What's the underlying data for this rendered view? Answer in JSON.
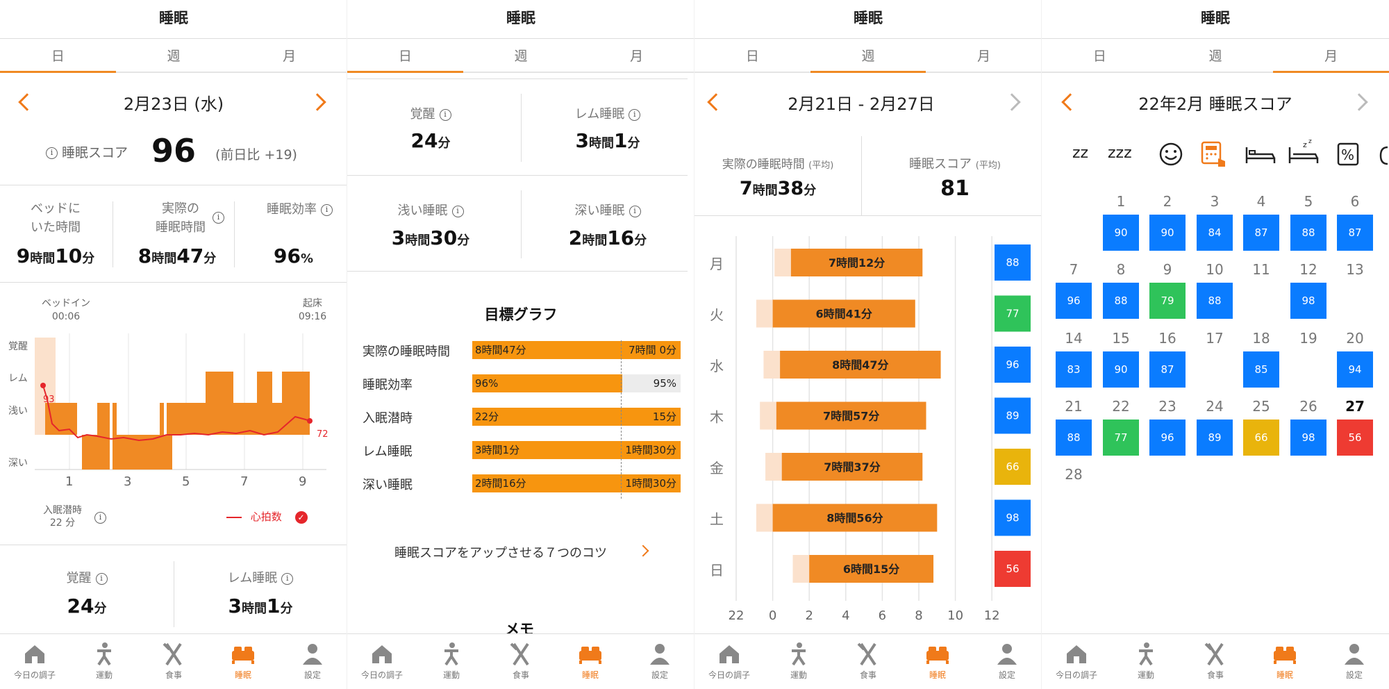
{
  "colors": {
    "accent": "#f07a1a",
    "bar": "#f08a24",
    "light": "#fbe1cc",
    "blue": "#0a7cff",
    "green": "#2fc35a",
    "yellow": "#e9b40c",
    "red": "#ee3b32"
  },
  "common": {
    "title": "睡眠",
    "tabs": [
      "日",
      "週",
      "月"
    ]
  },
  "nav": [
    {
      "label": "今日の調子",
      "icon": "home-icon"
    },
    {
      "label": "運動",
      "icon": "exercise-icon"
    },
    {
      "label": "食事",
      "icon": "fork-knife-icon"
    },
    {
      "label": "睡眠",
      "icon": "bed-icon"
    },
    {
      "label": "設定",
      "icon": "person-icon"
    }
  ],
  "p1": {
    "date": "2月23日 (水)",
    "score_label": "睡眠スコア",
    "score_value": "96",
    "score_diff": "(前日比 +19)",
    "stats": [
      {
        "label1": "ベッドに",
        "label2": "いた時間",
        "h": "9",
        "hu": "時間",
        "m": "10",
        "mu": "分"
      },
      {
        "label1": "実際の",
        "label2": "睡眠時間",
        "h": "8",
        "hu": "時間",
        "m": "47",
        "mu": "分"
      },
      {
        "label1": "睡眠効率",
        "label2": "",
        "h": "96",
        "hu": "%",
        "m": "",
        "mu": ""
      }
    ],
    "bedin_label": "ベッドイン",
    "bedin_time": "00:06",
    "wake_label": "起床",
    "wake_time": "09:16",
    "stage_labels": [
      "覚醒",
      "レム",
      "浅い",
      "深い"
    ],
    "x_ticks": [
      "1",
      "3",
      "5",
      "7",
      "9"
    ],
    "hr_start": "93",
    "hr_end": "72",
    "latency_label": "入眠潜時",
    "latency_value": "22 分",
    "legend_label": "心拍数",
    "awake_label": "覚醒",
    "awake_value": "24",
    "awake_unit": "分",
    "rem_label": "レム睡眠",
    "rem_h": "3",
    "rem_hu": "時間",
    "rem_m": "1",
    "rem_mu": "分"
  },
  "p2": {
    "cells": [
      {
        "label": "覚醒",
        "h": "24",
        "hu": "分",
        "m": "",
        "mu": ""
      },
      {
        "label": "レム睡眠",
        "h": "3",
        "hu": "時間",
        "m": "1",
        "mu": "分"
      },
      {
        "label": "浅い睡眠",
        "h": "3",
        "hu": "時間",
        "m": "30",
        "mu": "分"
      },
      {
        "label": "深い睡眠",
        "h": "2",
        "hu": "時間",
        "m": "16",
        "mu": "分"
      }
    ],
    "goal_title": "目標グラフ",
    "goals": [
      {
        "label": "実際の睡眠時間",
        "actual": "8時間47分",
        "target": "7時間 0分",
        "fraction": 1.0
      },
      {
        "label": "睡眠効率",
        "actual": "96%",
        "target": "95%",
        "fraction": 0.72
      },
      {
        "label": "入眠潜時",
        "actual": "22分",
        "target": "15分",
        "fraction": 1.0
      },
      {
        "label": "レム睡眠",
        "actual": "3時間1分",
        "target": "1時間30分",
        "fraction": 1.0
      },
      {
        "label": "深い睡眠",
        "actual": "2時間16分",
        "target": "1時間30分",
        "fraction": 1.0
      }
    ],
    "tips": "睡眠スコアをアップさせる７つのコツ",
    "memo": "メモ"
  },
  "p3": {
    "range": "2月21日 - 2月27日",
    "avg_sleep_label": "実際の睡眠時間",
    "avg_suffix": "(平均)",
    "avg_sleep_h": "7",
    "avg_sleep_m": "38",
    "avg_score_label": "睡眠スコア",
    "avg_score": "81",
    "x_ticks": [
      "22",
      "0",
      "2",
      "4",
      "6",
      "8",
      "10",
      "12"
    ]
  },
  "chart_data": {
    "type": "bar",
    "title": "",
    "categories": [
      "月",
      "火",
      "水",
      "木",
      "金",
      "土",
      "日"
    ],
    "x_unit_hours_from_midnight": true,
    "series": [
      {
        "values_start": [
          1.0,
          -0.0,
          0.4,
          0.2,
          0.5,
          0.0,
          2.0
        ],
        "values_end": [
          8.2,
          7.8,
          9.2,
          8.4,
          8.2,
          9.0,
          8.8
        ],
        "labels": [
          "7時間12分",
          "6時間41分",
          "8時間47分",
          "7時間57分",
          "7時間37分",
          "8時間56分",
          "6時間15分"
        ],
        "scores": [
          88,
          77,
          96,
          89,
          66,
          98,
          56
        ]
      }
    ],
    "xlim": [
      -2,
      12
    ]
  },
  "p4": {
    "title": "22年2月 睡眠スコア",
    "filter_icons": [
      "zz",
      "zzz",
      "smile-icon",
      "calculator-icon",
      "bed-icon",
      "bed-zzz-icon",
      "percent-icon"
    ],
    "days": [
      {
        "d": "1",
        "s": "90",
        "c": "blue"
      },
      {
        "d": "2",
        "s": "90",
        "c": "blue"
      },
      {
        "d": "3",
        "s": "84",
        "c": "blue"
      },
      {
        "d": "4",
        "s": "87",
        "c": "blue"
      },
      {
        "d": "5",
        "s": "88",
        "c": "blue"
      },
      {
        "d": "6",
        "s": "87",
        "c": "blue"
      },
      {
        "d": "7",
        "s": "96",
        "c": "blue"
      },
      {
        "d": "8",
        "s": "88",
        "c": "blue"
      },
      {
        "d": "9",
        "s": "79",
        "c": "green"
      },
      {
        "d": "10",
        "s": "88",
        "c": "blue"
      },
      {
        "d": "11",
        "s": "",
        "c": ""
      },
      {
        "d": "12",
        "s": "98",
        "c": "blue"
      },
      {
        "d": "13",
        "s": "",
        "c": ""
      },
      {
        "d": "14",
        "s": "83",
        "c": "blue"
      },
      {
        "d": "15",
        "s": "90",
        "c": "blue"
      },
      {
        "d": "16",
        "s": "87",
        "c": "blue"
      },
      {
        "d": "17",
        "s": "",
        "c": ""
      },
      {
        "d": "18",
        "s": "85",
        "c": "blue"
      },
      {
        "d": "19",
        "s": "",
        "c": ""
      },
      {
        "d": "20",
        "s": "94",
        "c": "blue"
      },
      {
        "d": "21",
        "s": "88",
        "c": "blue"
      },
      {
        "d": "22",
        "s": "77",
        "c": "green"
      },
      {
        "d": "23",
        "s": "96",
        "c": "blue"
      },
      {
        "d": "24",
        "s": "89",
        "c": "blue"
      },
      {
        "d": "25",
        "s": "66",
        "c": "yellow"
      },
      {
        "d": "26",
        "s": "98",
        "c": "blue"
      },
      {
        "d": "27",
        "s": "56",
        "c": "red"
      },
      {
        "d": "28",
        "s": "",
        "c": ""
      }
    ]
  }
}
